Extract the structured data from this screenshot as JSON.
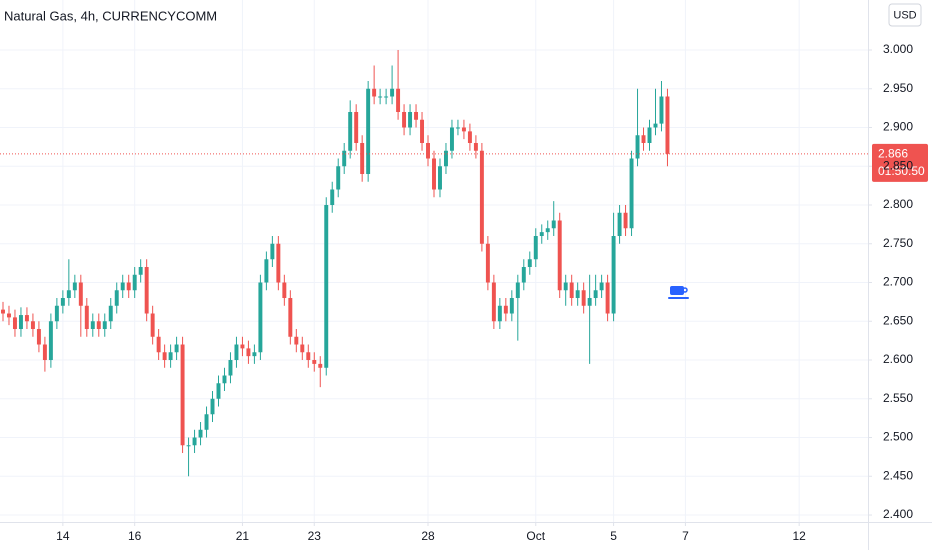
{
  "chart_data": {
    "type": "candlestick",
    "title": "Natural Gas, 4h, CURRENCYCOMM",
    "currency": "USD",
    "countdown": "01:50:50",
    "up_color": "#26a69a",
    "down_color": "#ef5350",
    "grid": true,
    "xlim": [
      -0.5,
      144.5
    ],
    "xticks": [
      {
        "value": 10,
        "label": "14"
      },
      {
        "value": 22,
        "label": "16"
      },
      {
        "value": 40,
        "label": "21"
      },
      {
        "value": 52,
        "label": "23"
      },
      {
        "value": 71,
        "label": "28"
      },
      {
        "value": 89,
        "label": "Oct"
      },
      {
        "value": 102,
        "label": "5"
      },
      {
        "value": 114,
        "label": "7"
      },
      {
        "value": 133,
        "label": "12"
      }
    ],
    "ylim": [
      2.391,
      3.0645
    ],
    "yticks": [
      {
        "value": 2.4,
        "label": "2.400"
      },
      {
        "value": 2.45,
        "label": "2.450"
      },
      {
        "value": 2.5,
        "label": "2.500"
      },
      {
        "value": 2.55,
        "label": "2.550"
      },
      {
        "value": 2.6,
        "label": "2.600"
      },
      {
        "value": 2.65,
        "label": "2.650"
      },
      {
        "value": 2.7,
        "label": "2.700"
      },
      {
        "value": 2.75,
        "label": "2.750"
      },
      {
        "value": 2.8,
        "label": "2.800"
      },
      {
        "value": 2.85,
        "label": "2.850"
      },
      {
        "value": 2.9,
        "label": "2.900"
      },
      {
        "value": 2.95,
        "label": "2.950"
      },
      {
        "value": 3.0,
        "label": "3.000"
      }
    ],
    "x": [
      0,
      1,
      2,
      3,
      4,
      5,
      6,
      7,
      8,
      9,
      10,
      11,
      12,
      13,
      14,
      15,
      16,
      17,
      18,
      19,
      20,
      21,
      22,
      23,
      24,
      25,
      26,
      27,
      28,
      29,
      30,
      31,
      32,
      33,
      34,
      35,
      36,
      37,
      38,
      39,
      40,
      41,
      42,
      43,
      44,
      45,
      46,
      47,
      48,
      49,
      50,
      51,
      52,
      53,
      54,
      55,
      56,
      57,
      58,
      59,
      60,
      61,
      62,
      63,
      64,
      65,
      66,
      67,
      68,
      69,
      70,
      71,
      72,
      73,
      74,
      75,
      76,
      77,
      78,
      79,
      80,
      81,
      82,
      83,
      84,
      85,
      86,
      87,
      88,
      89,
      90,
      91,
      92,
      93,
      94,
      95,
      96,
      97,
      98,
      99,
      100,
      101,
      102,
      103,
      104,
      105,
      106,
      107,
      108,
      109,
      110,
      111
    ],
    "open": [
      2.665,
      2.66,
      2.655,
      2.64,
      2.658,
      2.65,
      2.64,
      2.62,
      2.6,
      2.65,
      2.67,
      2.68,
      2.69,
      2.7,
      2.67,
      2.64,
      2.65,
      2.64,
      2.65,
      2.67,
      2.69,
      2.7,
      2.69,
      2.71,
      2.72,
      2.66,
      2.63,
      2.61,
      2.6,
      2.61,
      2.62,
      2.49,
      2.49,
      2.5,
      2.51,
      2.53,
      2.55,
      2.57,
      2.58,
      2.6,
      2.62,
      2.615,
      2.605,
      2.61,
      2.7,
      2.73,
      2.75,
      2.7,
      2.68,
      2.63,
      2.62,
      2.61,
      2.6,
      2.595,
      2.59,
      2.8,
      2.82,
      2.85,
      2.87,
      2.92,
      2.88,
      2.84,
      2.95,
      2.94,
      2.94,
      2.94,
      2.95,
      2.92,
      2.9,
      2.92,
      2.91,
      2.88,
      2.86,
      2.82,
      2.85,
      2.87,
      2.9,
      2.9,
      2.895,
      2.88,
      2.87,
      2.75,
      2.7,
      2.65,
      2.67,
      2.66,
      2.68,
      2.7,
      2.72,
      2.73,
      2.76,
      2.765,
      2.77,
      2.78,
      2.69,
      2.7,
      2.68,
      2.69,
      2.67,
      2.68,
      2.69,
      2.7,
      2.66,
      2.76,
      2.79,
      2.77,
      2.86,
      2.89,
      2.88,
      2.9,
      2.905,
      2.94
    ],
    "high": [
      2.675,
      2.67,
      2.665,
      2.668,
      2.668,
      2.66,
      2.65,
      2.63,
      2.66,
      2.68,
      2.69,
      2.73,
      2.71,
      2.71,
      2.68,
      2.66,
      2.66,
      2.66,
      2.68,
      2.7,
      2.71,
      2.71,
      2.72,
      2.73,
      2.73,
      2.67,
      2.64,
      2.62,
      2.62,
      2.63,
      2.63,
      2.5,
      2.51,
      2.52,
      2.54,
      2.56,
      2.58,
      2.59,
      2.61,
      2.63,
      2.63,
      2.625,
      2.62,
      2.71,
      2.74,
      2.76,
      2.76,
      2.71,
      2.69,
      2.64,
      2.63,
      2.62,
      2.61,
      2.605,
      2.81,
      2.83,
      2.86,
      2.88,
      2.935,
      2.93,
      2.89,
      2.96,
      2.98,
      2.95,
      2.95,
      2.98,
      3.0,
      2.93,
      2.93,
      2.93,
      2.92,
      2.89,
      2.87,
      2.86,
      2.88,
      2.91,
      2.91,
      2.91,
      2.905,
      2.89,
      2.88,
      2.76,
      2.71,
      2.68,
      2.68,
      2.69,
      2.71,
      2.73,
      2.74,
      2.77,
      2.775,
      2.78,
      2.805,
      2.79,
      2.71,
      2.71,
      2.7,
      2.7,
      2.71,
      2.71,
      2.71,
      2.71,
      2.79,
      2.8,
      2.8,
      2.87,
      2.95,
      2.9,
      2.91,
      2.95,
      2.96,
      2.95
    ],
    "low": [
      2.65,
      2.645,
      2.63,
      2.63,
      2.64,
      2.63,
      2.61,
      2.585,
      2.59,
      2.64,
      2.66,
      2.67,
      2.68,
      2.63,
      2.63,
      2.63,
      2.63,
      2.63,
      2.64,
      2.66,
      2.68,
      2.68,
      2.68,
      2.7,
      2.65,
      2.62,
      2.6,
      2.59,
      2.59,
      2.6,
      2.48,
      2.45,
      2.48,
      2.49,
      2.5,
      2.52,
      2.54,
      2.56,
      2.57,
      2.59,
      2.605,
      2.595,
      2.595,
      2.6,
      2.69,
      2.72,
      2.69,
      2.67,
      2.62,
      2.61,
      2.6,
      2.59,
      2.585,
      2.565,
      2.58,
      2.79,
      2.81,
      2.84,
      2.86,
      2.87,
      2.83,
      2.83,
      2.93,
      2.93,
      2.93,
      2.93,
      2.91,
      2.89,
      2.89,
      2.9,
      2.87,
      2.85,
      2.81,
      2.81,
      2.84,
      2.86,
      2.89,
      2.885,
      2.87,
      2.86,
      2.74,
      2.69,
      2.64,
      2.64,
      2.65,
      2.65,
      2.625,
      2.69,
      2.71,
      2.72,
      2.75,
      2.755,
      2.76,
      2.68,
      2.67,
      2.67,
      2.67,
      2.66,
      2.595,
      2.67,
      2.68,
      2.65,
      2.65,
      2.75,
      2.76,
      2.76,
      2.85,
      2.87,
      2.87,
      2.89,
      2.895,
      2.85
    ],
    "close": [
      2.66,
      2.655,
      2.64,
      2.658,
      2.65,
      2.64,
      2.62,
      2.6,
      2.65,
      2.67,
      2.68,
      2.69,
      2.7,
      2.67,
      2.64,
      2.65,
      2.64,
      2.65,
      2.67,
      2.69,
      2.7,
      2.69,
      2.71,
      2.72,
      2.66,
      2.63,
      2.61,
      2.6,
      2.61,
      2.62,
      2.49,
      2.49,
      2.5,
      2.51,
      2.53,
      2.55,
      2.57,
      2.58,
      2.6,
      2.62,
      2.615,
      2.605,
      2.61,
      2.7,
      2.73,
      2.75,
      2.7,
      2.68,
      2.63,
      2.62,
      2.61,
      2.6,
      2.595,
      2.59,
      2.8,
      2.82,
      2.85,
      2.87,
      2.92,
      2.88,
      2.84,
      2.95,
      2.94,
      2.94,
      2.94,
      2.95,
      2.92,
      2.9,
      2.92,
      2.91,
      2.88,
      2.86,
      2.82,
      2.85,
      2.87,
      2.9,
      2.9,
      2.895,
      2.88,
      2.87,
      2.75,
      2.7,
      2.65,
      2.67,
      2.66,
      2.68,
      2.7,
      2.72,
      2.73,
      2.76,
      2.765,
      2.77,
      2.78,
      2.69,
      2.7,
      2.68,
      2.69,
      2.67,
      2.68,
      2.69,
      2.7,
      2.66,
      2.76,
      2.79,
      2.77,
      2.86,
      2.89,
      2.88,
      2.9,
      2.905,
      2.94,
      2.866
    ]
  }
}
